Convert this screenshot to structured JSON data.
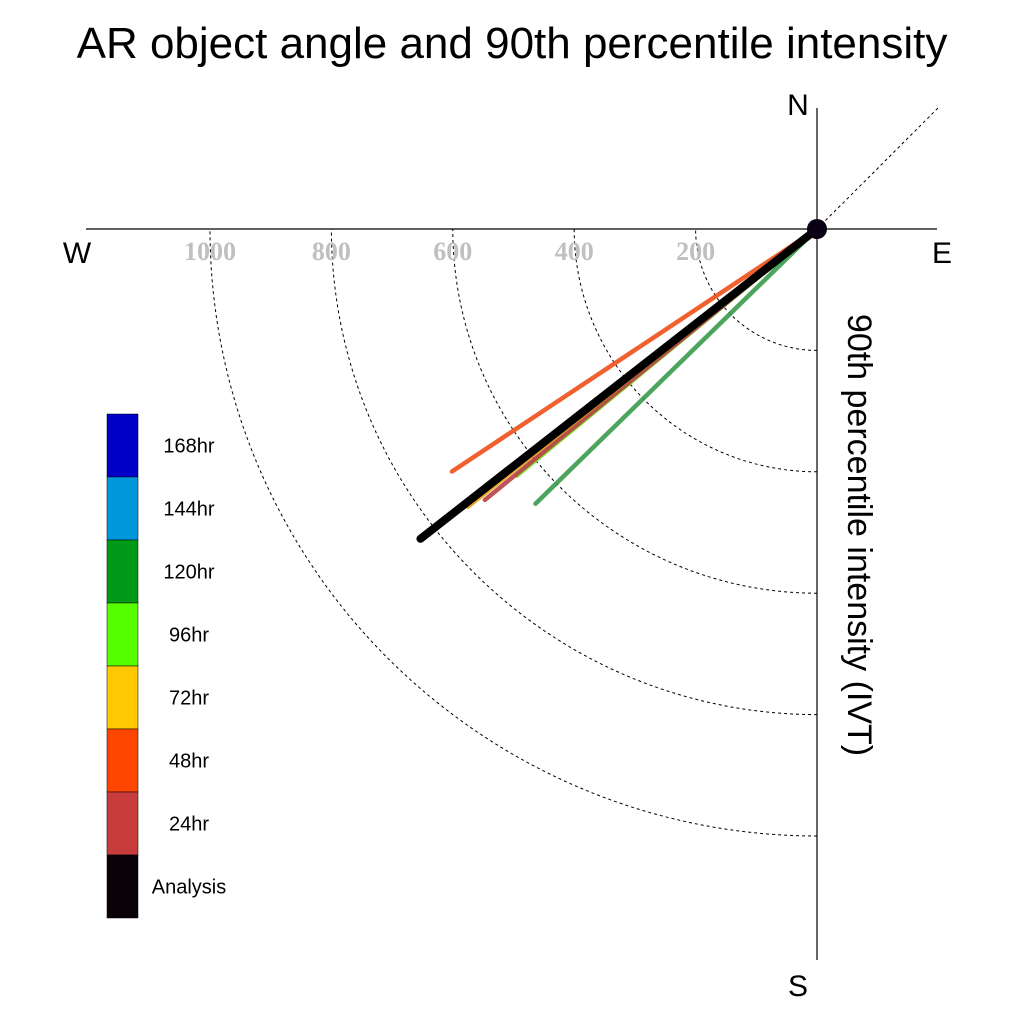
{
  "chart_data": {
    "type": "polar-vector",
    "title": "AR object angle and 90th percentile intensity",
    "radial_axis_label": "90th percentile intensity (IVT)",
    "compass": {
      "north": "N",
      "south": "S",
      "east": "E",
      "west": "W"
    },
    "radial_ticks": [
      200,
      400,
      600,
      800,
      1000
    ],
    "rmax": 1000,
    "grid": true,
    "legend_position": "bottom-left",
    "series": [
      {
        "name": "168hr",
        "color": "#0000c8"
      },
      {
        "name": "144hr",
        "color": "#0098dc"
      },
      {
        "name": "120hr",
        "color": "#009a19",
        "angle_deg": 225.7,
        "intensity": 648,
        "line_color": "#3a9a4a"
      },
      {
        "name": "96hr",
        "color": "#55ff00",
        "angle_deg": 230.6,
        "intensity": 640,
        "line_color": "#6fe020"
      },
      {
        "name": "72hr",
        "color": "#ffc800",
        "angle_deg": 231.5,
        "intensity": 735,
        "line_color": "#e8a010"
      },
      {
        "name": "48hr",
        "color": "#ff4600",
        "angle_deg": 236.4,
        "intensity": 722,
        "line_color": "#f05018"
      },
      {
        "name": "24hr",
        "color": "#c83c3c",
        "angle_deg": 230.8,
        "intensity": 706,
        "line_color": "#b84045"
      },
      {
        "name": "Analysis",
        "color": "#0a0008",
        "angle_deg": 232.0,
        "intensity": 829,
        "line_color": "#000000"
      }
    ]
  }
}
